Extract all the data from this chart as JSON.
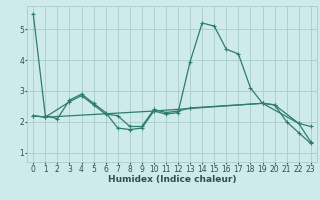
{
  "title": "",
  "xlabel": "Humidex (Indice chaleur)",
  "background_color": "#ceeaea",
  "grid_color": "#a8cccc",
  "line_color": "#2e7d6e",
  "xlim": [
    -0.5,
    23.5
  ],
  "ylim": [
    0.7,
    5.75
  ],
  "yticks": [
    1,
    2,
    3,
    4,
    5
  ],
  "xticks": [
    0,
    1,
    2,
    3,
    4,
    5,
    6,
    7,
    8,
    9,
    10,
    11,
    12,
    13,
    14,
    15,
    16,
    17,
    18,
    19,
    20,
    21,
    22,
    23
  ],
  "series1_x": [
    0,
    1,
    2,
    3,
    4,
    5,
    6,
    7,
    8,
    9,
    10,
    11,
    12,
    13,
    14,
    15,
    16,
    17,
    18,
    19,
    20,
    21,
    22,
    23
  ],
  "series1_y": [
    5.5,
    2.2,
    2.1,
    2.7,
    2.9,
    2.6,
    2.3,
    1.8,
    1.75,
    1.8,
    2.35,
    2.25,
    2.3,
    3.95,
    5.2,
    5.1,
    4.35,
    4.2,
    3.1,
    2.6,
    2.55,
    2.0,
    1.65,
    1.3
  ],
  "series2_x": [
    0,
    1,
    3,
    4,
    5,
    6,
    7,
    8,
    9,
    10,
    11,
    12,
    13,
    19,
    20,
    22,
    23
  ],
  "series2_y": [
    2.2,
    2.15,
    2.65,
    2.85,
    2.55,
    2.25,
    2.2,
    1.85,
    1.85,
    2.4,
    2.3,
    2.35,
    2.45,
    2.6,
    2.55,
    1.95,
    1.85
  ],
  "series3_x": [
    0,
    1,
    10,
    19,
    22,
    23
  ],
  "series3_y": [
    2.2,
    2.15,
    2.35,
    2.6,
    1.95,
    1.35
  ],
  "tick_fontsize": 5.5,
  "xlabel_fontsize": 6.5,
  "xlabel_fontweight": "bold"
}
